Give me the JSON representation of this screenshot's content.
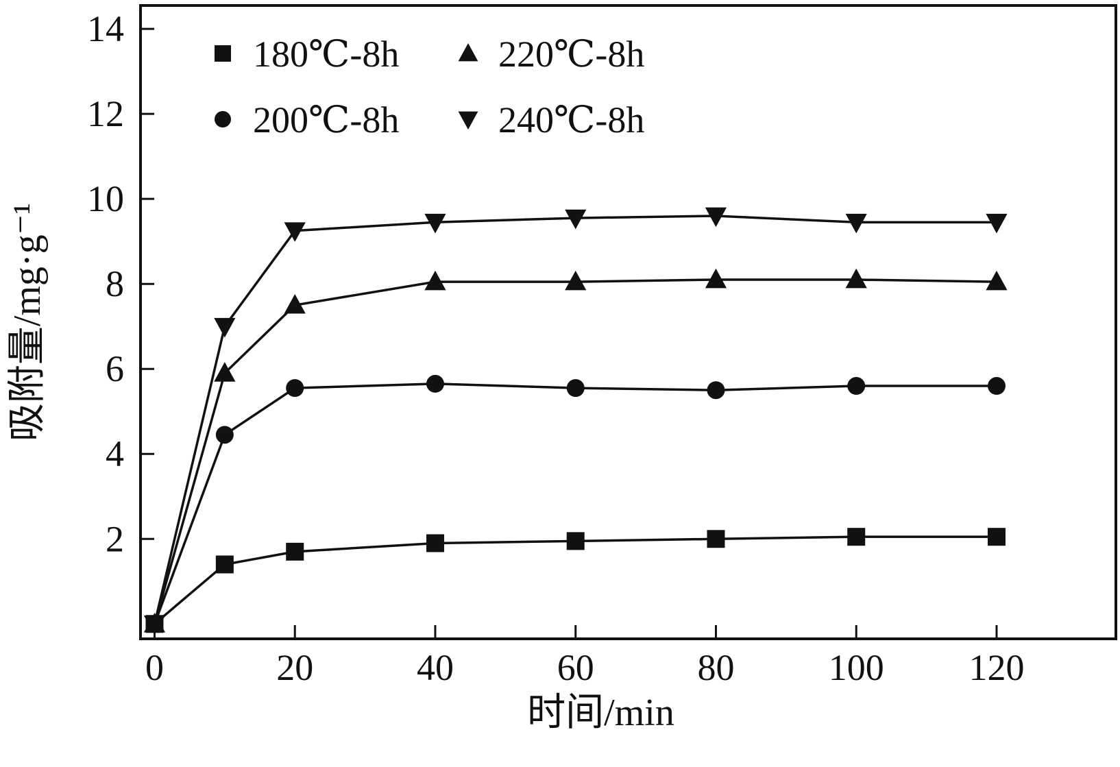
{
  "chart_data": {
    "type": "line",
    "title": "",
    "xlabel": "时间/min",
    "ylabel": "吸附量/mg·g⁻¹",
    "xlim": [
      0,
      130
    ],
    "ylim": [
      0,
      14
    ],
    "xticks": [
      0,
      20,
      40,
      60,
      80,
      100,
      120
    ],
    "yticks": [
      2,
      4,
      6,
      8,
      10,
      12,
      14
    ],
    "grid": false,
    "legend_position": "top-left-inside",
    "x": [
      0,
      10,
      20,
      40,
      60,
      80,
      100,
      120
    ],
    "series": [
      {
        "name": "180℃-8h",
        "marker": "square",
        "values": [
          0,
          1.4,
          1.7,
          1.9,
          1.95,
          2.0,
          2.05,
          2.05
        ]
      },
      {
        "name": "200℃-8h",
        "marker": "circle",
        "values": [
          0,
          4.45,
          5.55,
          5.65,
          5.55,
          5.5,
          5.6,
          5.6
        ]
      },
      {
        "name": "220℃-8h",
        "marker": "triangle-up",
        "values": [
          0,
          5.9,
          7.5,
          8.05,
          8.05,
          8.1,
          8.1,
          8.05
        ]
      },
      {
        "name": "240℃-8h",
        "marker": "triangle-down",
        "values": [
          0,
          7.0,
          9.25,
          9.45,
          9.55,
          9.6,
          9.45,
          9.45
        ]
      }
    ],
    "colors": {
      "line": "#111111",
      "background": "#ffffff"
    },
    "legend_rows": [
      [
        "180℃-8h",
        "220℃-8h"
      ],
      [
        "200℃-8h",
        "240℃-8h"
      ]
    ]
  }
}
